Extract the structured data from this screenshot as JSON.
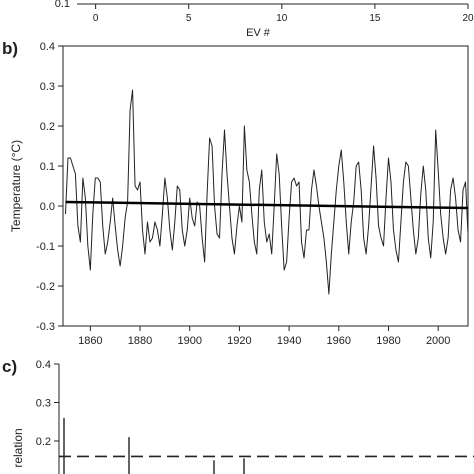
{
  "chart_data": [
    {
      "panel": "a",
      "type": "scatter",
      "title": "",
      "xlabel": "EV #",
      "ylabel": "",
      "xlim": [
        -1,
        20
      ],
      "x_ticks": [
        0,
        5,
        10,
        15,
        20
      ],
      "y_tick_visible": "0.1",
      "series": []
    },
    {
      "panel": "b",
      "label": "b)",
      "type": "line",
      "title": "",
      "xlabel": "",
      "ylabel": "Temperature (°C)",
      "xlim": [
        1849,
        2012
      ],
      "ylim": [
        -0.3,
        0.4
      ],
      "x_ticks": [
        1860,
        1880,
        1900,
        1920,
        1940,
        1960,
        1980,
        2000
      ],
      "y_ticks": [
        -0.3,
        -0.2,
        -0.1,
        0.0,
        0.1,
        0.2,
        0.3,
        0.4
      ],
      "y_tick_labels": [
        "-0.3",
        "-0.2",
        "-0.1",
        "0.0",
        "0.1",
        "0.2",
        "0.3",
        "0.4"
      ],
      "series": [
        {
          "x": [
            1850,
            1851,
            1852,
            1853,
            1854,
            1855,
            1856,
            1857,
            1858,
            1859,
            1860,
            1861,
            1862,
            1863,
            1864,
            1865,
            1866,
            1867,
            1868,
            1869,
            1870,
            1871,
            1872,
            1873,
            1874,
            1875,
            1876,
            1877,
            1878,
            1879,
            1880,
            1881,
            1882,
            1883,
            1884,
            1885,
            1886,
            1887,
            1888,
            1889,
            1890,
            1891,
            1892,
            1893,
            1894,
            1895,
            1896,
            1897,
            1898,
            1899,
            1900,
            1901,
            1902,
            1903,
            1904,
            1905,
            1906,
            1907,
            1908,
            1909,
            1910,
            1911,
            1912,
            1913,
            1914,
            1915,
            1916,
            1917,
            1918,
            1919,
            1920,
            1921,
            1922,
            1923,
            1924,
            1925,
            1926,
            1927,
            1928,
            1929,
            1930,
            1931,
            1932,
            1933,
            1934,
            1935,
            1936,
            1937,
            1938,
            1939,
            1940,
            1941,
            1942,
            1943,
            1944,
            1945,
            1946,
            1947,
            1948,
            1949,
            1950,
            1951,
            1952,
            1953,
            1954,
            1955,
            1956,
            1957,
            1958,
            1959,
            1960,
            1961,
            1962,
            1963,
            1964,
            1965,
            1966,
            1967,
            1968,
            1969,
            1970,
            1971,
            1972,
            1973,
            1974,
            1975,
            1976,
            1977,
            1978,
            1979,
            1980,
            1981,
            1982,
            1983,
            1984,
            1985,
            1986,
            1987,
            1988,
            1989,
            1990,
            1991,
            1992,
            1993,
            1994,
            1995,
            1996,
            1997,
            1998,
            1999,
            2000,
            2001,
            2002,
            2003,
            2004,
            2005,
            2006,
            2007,
            2008,
            2009,
            2010,
            2011,
            2012
          ],
          "values": [
            -0.02,
            0.12,
            0.12,
            0.1,
            0.08,
            -0.05,
            -0.09,
            0.07,
            0.02,
            -0.1,
            -0.16,
            -0.02,
            0.07,
            0.07,
            0.06,
            -0.05,
            -0.12,
            -0.09,
            -0.04,
            0.02,
            -0.05,
            -0.11,
            -0.15,
            -0.1,
            -0.03,
            0.01,
            0.24,
            0.29,
            0.05,
            0.04,
            0.06,
            -0.06,
            -0.12,
            -0.04,
            -0.09,
            -0.08,
            -0.04,
            -0.06,
            -0.1,
            -0.02,
            0.07,
            0.02,
            -0.06,
            -0.11,
            -0.04,
            0.05,
            0.04,
            -0.06,
            -0.1,
            -0.06,
            0.02,
            -0.03,
            -0.05,
            0.01,
            0.0,
            -0.08,
            -0.14,
            0.03,
            0.17,
            0.15,
            0.0,
            -0.07,
            -0.08,
            0.08,
            0.19,
            0.08,
            0.0,
            -0.08,
            -0.12,
            -0.05,
            0.0,
            -0.04,
            0.2,
            0.09,
            0.06,
            -0.02,
            -0.09,
            -0.12,
            0.04,
            0.09,
            -0.04,
            -0.09,
            -0.07,
            -0.12,
            0.0,
            0.13,
            0.08,
            -0.05,
            -0.16,
            -0.14,
            -0.03,
            0.06,
            0.07,
            0.05,
            0.06,
            -0.09,
            -0.13,
            -0.06,
            -0.06,
            0.04,
            0.09,
            0.05,
            0.0,
            -0.04,
            -0.08,
            -0.14,
            -0.22,
            -0.12,
            -0.04,
            0.04,
            0.1,
            0.14,
            0.06,
            -0.04,
            -0.12,
            -0.04,
            0.01,
            0.1,
            0.11,
            0.04,
            -0.08,
            -0.12,
            -0.05,
            0.05,
            0.15,
            0.07,
            -0.05,
            -0.08,
            -0.1,
            0.02,
            0.12,
            0.06,
            -0.06,
            -0.11,
            -0.14,
            -0.04,
            0.06,
            0.11,
            0.1,
            0.02,
            -0.06,
            -0.12,
            -0.08,
            0.03,
            0.1,
            0.04,
            -0.08,
            -0.13,
            -0.04,
            0.19,
            0.09,
            -0.02,
            -0.08,
            -0.12,
            -0.08,
            0.04,
            0.07,
            0.02,
            -0.06,
            -0.09,
            0.04,
            0.06,
            -0.07
          ]
        },
        {
          "type": "trend",
          "x": [
            1850,
            2012
          ],
          "values": [
            0.01,
            -0.005
          ]
        }
      ]
    },
    {
      "panel": "c",
      "label": "c)",
      "type": "bar",
      "title": "",
      "xlabel": "",
      "ylabel": "relation",
      "xlim": [
        0,
        83
      ],
      "y_ticks": [
        0.2,
        0.3,
        0.4
      ],
      "y_tick_labels": [
        "0.2",
        "0.3",
        "0.4"
      ],
      "ylim": [
        0.1,
        0.4
      ],
      "threshold": 0.16,
      "x": [
        1,
        14,
        31,
        37
      ],
      "values": [
        0.26,
        0.21,
        0.15,
        0.155
      ]
    }
  ]
}
